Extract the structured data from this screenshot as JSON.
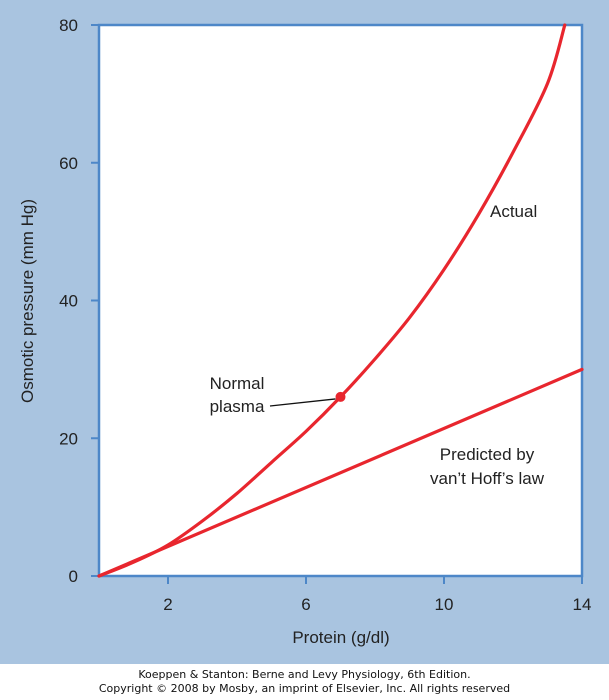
{
  "colors": {
    "background_panel": "#a9c4e0",
    "plot_area": "#ffffff",
    "axis_frame": "#4d87c8",
    "curve": "#e8262e",
    "leader": "#111111"
  },
  "chart_data": {
    "type": "line",
    "title": "",
    "xlabel": "Protein (g/dl)",
    "ylabel": "Osmotic pressure (mm Hg)",
    "xlim": [
      0,
      14
    ],
    "ylim": [
      0,
      80
    ],
    "xticks": [
      2,
      6,
      10,
      14
    ],
    "xtick_labels": [
      "2",
      "6",
      "10",
      "14"
    ],
    "yticks": [
      0,
      20,
      40,
      60,
      80
    ],
    "ytick_labels": [
      "0",
      "20",
      "40",
      "60",
      "80"
    ],
    "grid": false,
    "legend": "none",
    "series": [
      {
        "name": "Actual",
        "x": [
          0,
          1,
          2,
          3,
          4,
          5,
          6,
          7,
          8,
          9,
          10,
          11,
          12,
          13,
          13.5
        ],
        "y": [
          0,
          2,
          4.5,
          8,
          12,
          16.5,
          21,
          26,
          31.5,
          37.5,
          44.5,
          52.5,
          61.5,
          71.5,
          80
        ]
      },
      {
        "name": "Predicted by van't Hoff's law",
        "x": [
          0,
          14
        ],
        "y": [
          0,
          30
        ]
      }
    ],
    "highlight_point": {
      "x": 7,
      "y": 26
    },
    "annotations": [
      {
        "lines": [
          "Actual"
        ]
      },
      {
        "lines": [
          "Normal",
          "plasma"
        ]
      },
      {
        "lines": [
          "Predicted by",
          "van’t Hoff’s law"
        ]
      }
    ]
  },
  "credit": {
    "line1": "Koeppen & Stanton: Berne and Levy Physiology, 6th Edition.",
    "line2": "Copyright © 2008 by Mosby, an imprint of Elsevier, Inc. All rights reserved"
  }
}
